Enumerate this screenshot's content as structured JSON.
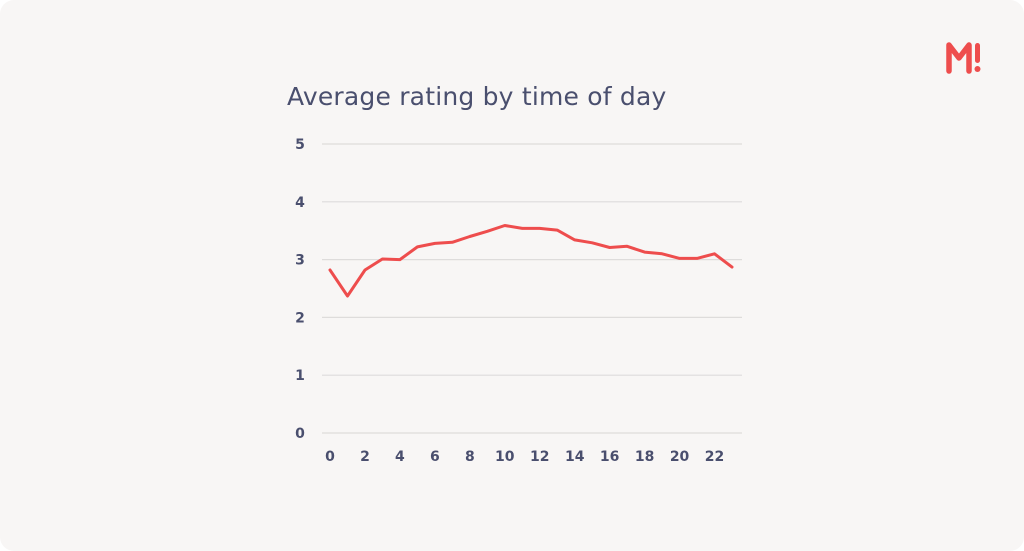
{
  "brand": {
    "logo_text": "M!",
    "accent": "#ee4d4d"
  },
  "colors": {
    "background": "#f8f6f5",
    "grid": "#dedcdb",
    "text": "#4a4f6e",
    "line": "#ee4d4d"
  },
  "chart_data": {
    "type": "line",
    "title": "Average rating by time of day",
    "xlabel": "",
    "ylabel": "",
    "grid": true,
    "xlim": [
      0,
      23
    ],
    "ylim": [
      0,
      5
    ],
    "x_ticks": [
      0,
      2,
      4,
      6,
      8,
      10,
      12,
      14,
      16,
      18,
      20,
      22
    ],
    "y_ticks": [
      0,
      1,
      2,
      3,
      4,
      5
    ],
    "series": [
      {
        "x": [
          0,
          1,
          2,
          3,
          4,
          5,
          6,
          7,
          8,
          9,
          10,
          11,
          12,
          13,
          14,
          15,
          16,
          17,
          18,
          19,
          20,
          21,
          22,
          23
        ],
        "values": [
          2.82,
          2.37,
          2.82,
          3.01,
          3.0,
          3.22,
          3.28,
          3.3,
          3.4,
          3.49,
          3.59,
          3.54,
          3.54,
          3.51,
          3.34,
          3.29,
          3.21,
          3.23,
          3.13,
          3.1,
          3.02,
          3.02,
          3.1,
          2.87
        ]
      }
    ]
  }
}
